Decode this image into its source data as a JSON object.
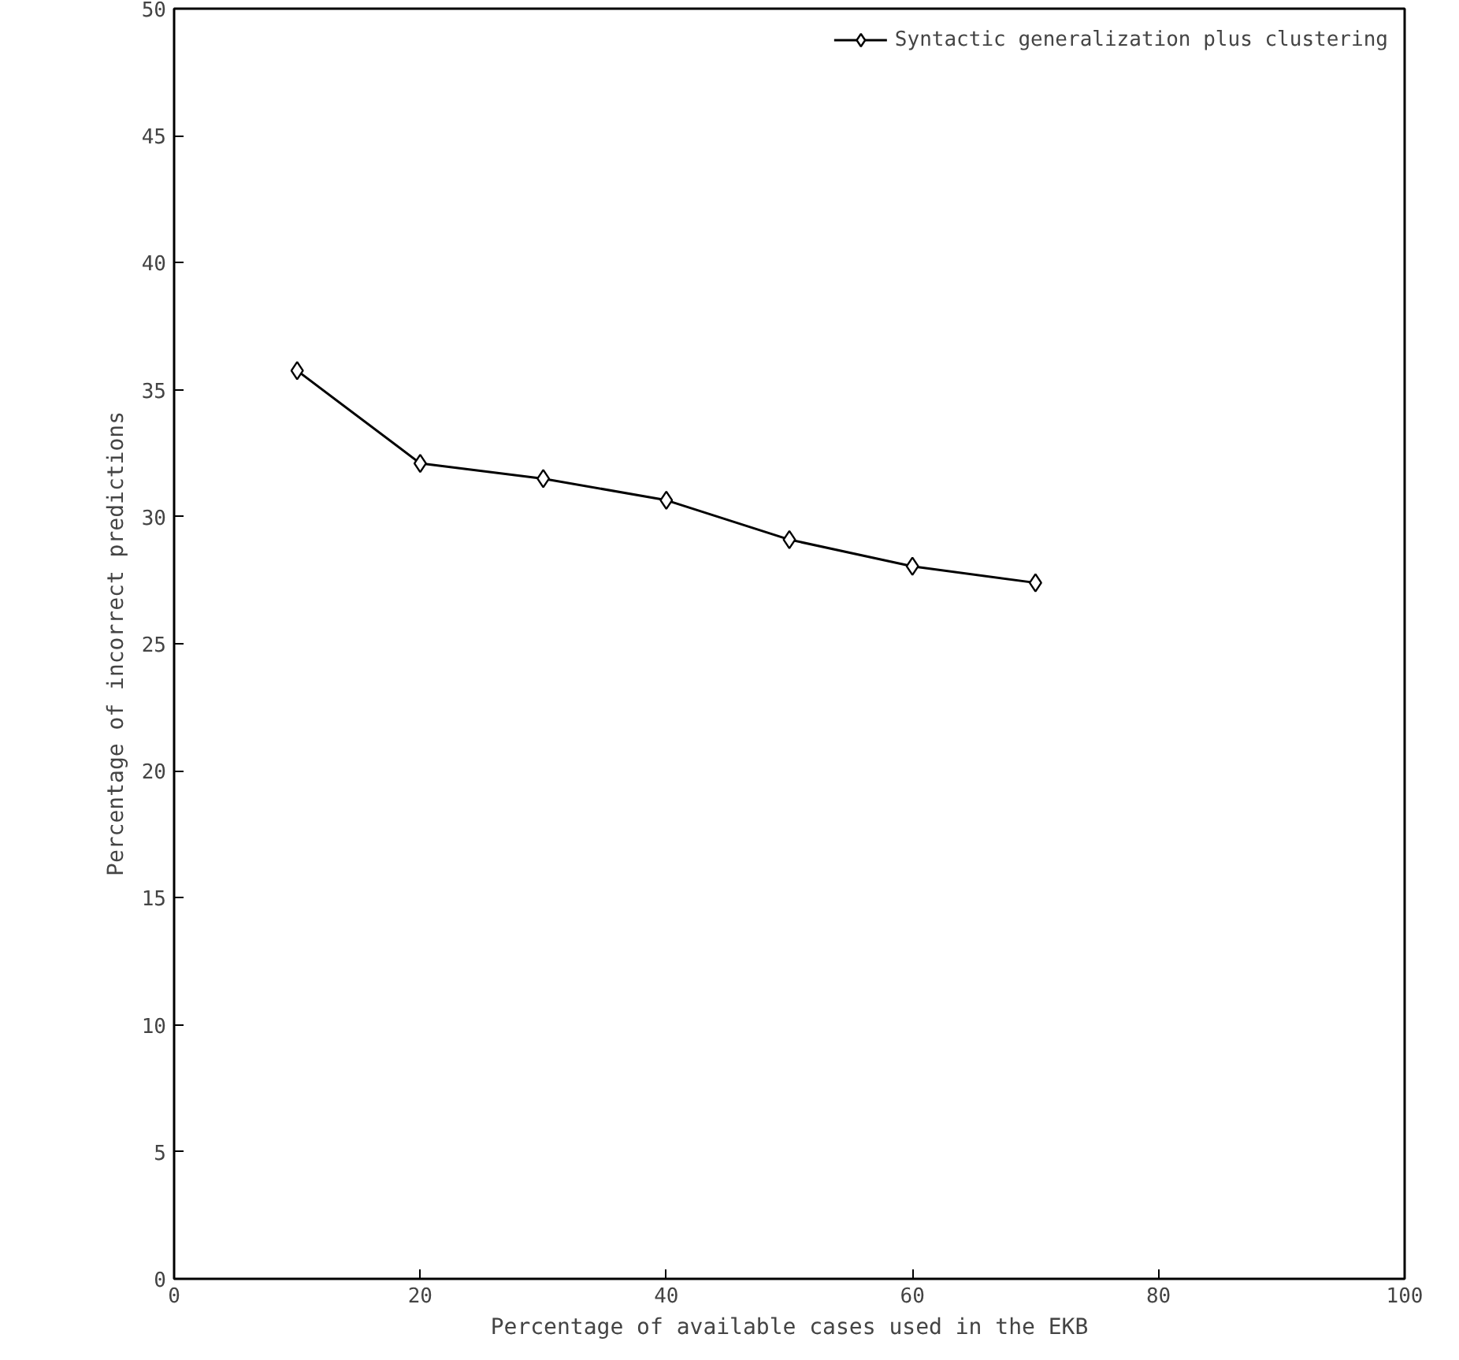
{
  "chart_data": {
    "type": "line",
    "xlabel": "Percentage of available cases used in the EKB",
    "ylabel": "Percentage of incorrect predictions",
    "x": [
      10,
      20,
      30,
      40,
      50,
      60,
      70
    ],
    "series": [
      {
        "name": "Syntactic generalization plus clustering",
        "color": "#000000",
        "values": [
          35.75,
          32.1,
          31.5,
          30.65,
          29.1,
          28.05,
          27.4
        ]
      }
    ],
    "xlim": [
      0,
      100
    ],
    "ylim": [
      0,
      50
    ],
    "xticks": [
      0,
      20,
      40,
      60,
      80,
      100
    ],
    "yticks": [
      0,
      5,
      10,
      15,
      20,
      25,
      30,
      35,
      40,
      45,
      50
    ],
    "grid": false,
    "legend": "top right",
    "marker": "diamond",
    "line_style": "solid"
  }
}
